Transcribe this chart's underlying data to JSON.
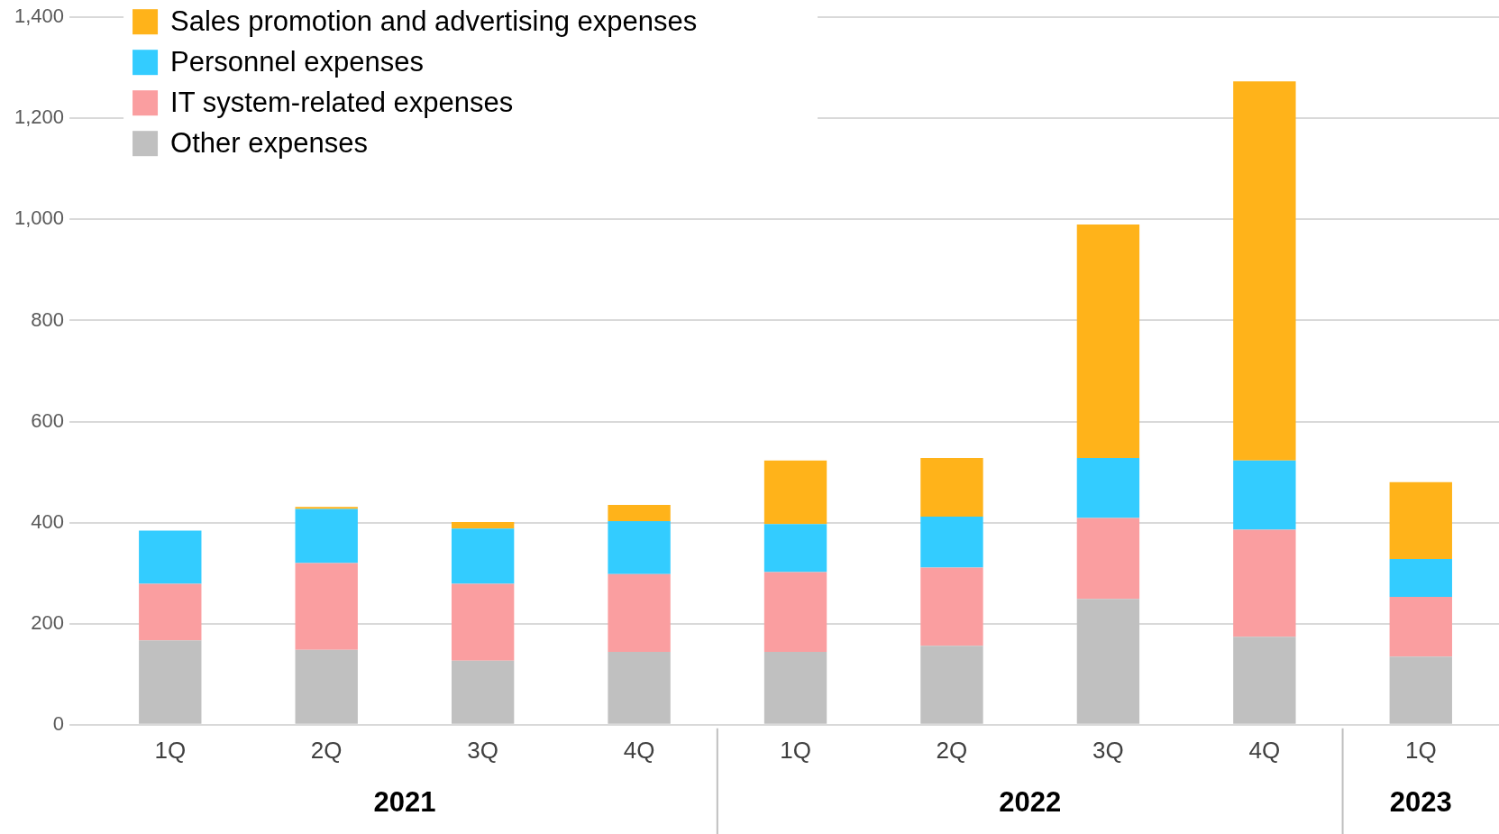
{
  "chart_data": {
    "type": "bar",
    "stacked": true,
    "categories": [
      "1Q",
      "2Q",
      "3Q",
      "4Q",
      "1Q",
      "2Q",
      "3Q",
      "4Q",
      "1Q"
    ],
    "series": [
      {
        "name": "Other expenses",
        "color": "#c0c0c0",
        "values": [
          167,
          148,
          127,
          144,
          144,
          156,
          249,
          174,
          135
        ]
      },
      {
        "name": "IT system-related expenses",
        "color": "#fa9ea0",
        "values": [
          112,
          172,
          152,
          154,
          158,
          155,
          160,
          212,
          118
        ]
      },
      {
        "name": "Personnel expenses",
        "color": "#33ccff",
        "values": [
          105,
          107,
          109,
          105,
          95,
          101,
          119,
          137,
          75
        ]
      },
      {
        "name": "Sales promotion and advertising expenses",
        "color": "#ffb31a",
        "values": [
          0,
          4,
          13,
          32,
          126,
          116,
          462,
          750,
          152
        ]
      }
    ],
    "ylim": [
      0,
      1400
    ],
    "yticks": [
      0,
      200,
      400,
      600,
      800,
      {
        "value": 1000,
        "label": "1,000"
      },
      {
        "value": 1200,
        "label": "1,200"
      },
      {
        "value": 1400,
        "label": "1,400"
      }
    ],
    "grid": "y",
    "legend": "top left",
    "annotations": [
      "2021",
      "2022",
      "2023"
    ]
  }
}
